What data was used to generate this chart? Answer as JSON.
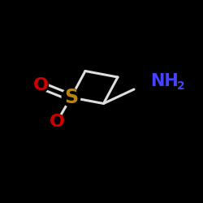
{
  "background_color": "#000000",
  "atoms": {
    "S": {
      "color": "#b8860b",
      "fontsize": 17,
      "fontweight": "bold"
    },
    "O": {
      "color": "#cc0000",
      "fontsize": 16,
      "fontweight": "bold"
    },
    "NH2": {
      "color": "#4444ff",
      "fontsize": 15,
      "fontweight": "bold"
    },
    "NH2_2": {
      "color": "#4444ff",
      "fontsize": 10,
      "fontweight": "bold"
    }
  },
  "bonds": {
    "color": "#1a1a1a",
    "linewidth": 2.2
  },
  "figsize": [
    2.5,
    2.5
  ],
  "dpi": 100
}
